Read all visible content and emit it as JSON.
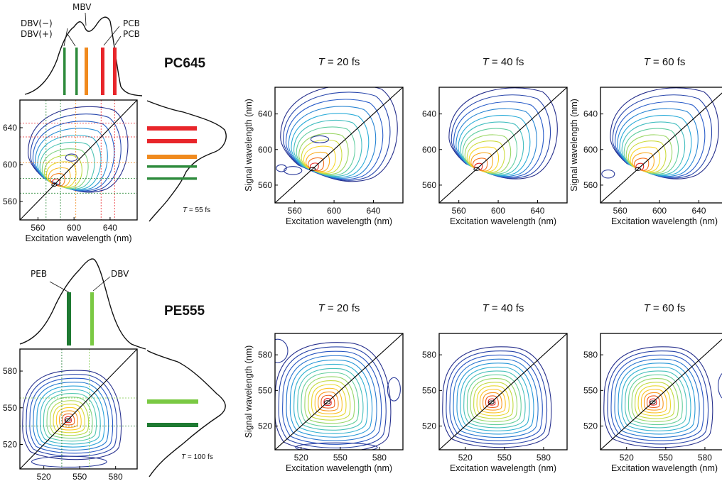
{
  "chart_data": [
    {
      "sample": "PC645",
      "type": "2d-electronic-spectra",
      "absorption_labels": [
        "MBV",
        "DBV(−)",
        "DBV(+)",
        "PCB",
        "PCB"
      ],
      "pigment_bars": [
        {
          "label": "DBV(+)",
          "wavelength": 569,
          "color": "#2e8b3c"
        },
        {
          "label": "DBV(−)",
          "wavelength": 585,
          "color": "#2e8b3c"
        },
        {
          "label": "MBV",
          "wavelength": 602,
          "color": "#f08a1e"
        },
        {
          "label": "PCB",
          "wavelength": 630,
          "color": "#e8252a"
        },
        {
          "label": "PCB",
          "wavelength": 645,
          "color": "#e8252a"
        }
      ],
      "overview_time_prefix": "T",
      "overview_time_label": " = 55 fs",
      "xlabel": "Excitation wavelength (nm)",
      "ylabel": "Signal wavelength (nm)",
      "axis_range": [
        540,
        670
      ],
      "ticks": [
        560,
        600,
        640
      ],
      "peak": [
        578,
        578
      ],
      "panel_time_prefix": "T",
      "panels": [
        " = 20 fs",
        " = 40 fs",
        " = 60 fs"
      ]
    },
    {
      "sample": "PE555",
      "type": "2d-electronic-spectra",
      "absorption_labels": [
        "PEB",
        "DBV"
      ],
      "pigment_bars": [
        {
          "label": "PEB",
          "wavelength": 535,
          "color": "#1e7a32"
        },
        {
          "label": "DBV",
          "wavelength": 558,
          "color": "#7ac943"
        }
      ],
      "overview_time_prefix": "T",
      "overview_time_label": " = 100 fs",
      "xlabel": "Excitation wavelength (nm)",
      "ylabel": "Signal wavelength (nm)",
      "axis_range": [
        500,
        598
      ],
      "ticks": [
        520,
        550,
        580
      ],
      "peak": [
        540,
        540
      ],
      "panel_time_prefix": "T",
      "panels": [
        " = 20 fs",
        " = 40 fs",
        " = 60 fs"
      ]
    }
  ]
}
